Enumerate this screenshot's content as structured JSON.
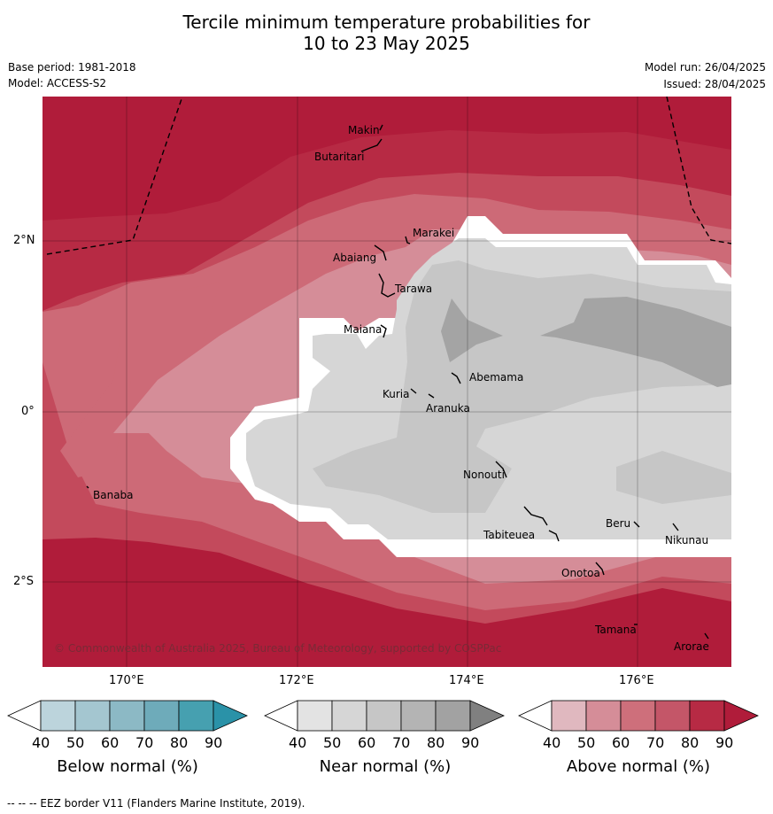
{
  "header": {
    "title_line1": "Tercile minimum temperature probabilities for",
    "title_line2": "10 to 23 May 2025",
    "base_period": "Base period: 1981-2018",
    "model": "Model: ACCESS-S2",
    "model_run": "Model run: 26/04/2025",
    "issued": "Issued: 28/04/2025"
  },
  "map": {
    "lon_range": [
      169,
      177.1
    ],
    "lat_range": [
      -2.9,
      3.8
    ],
    "lon_ticks": [
      "170°E",
      "172°E",
      "174°E",
      "176°E"
    ],
    "lat_ticks": [
      "2°N",
      "0°",
      "2°S"
    ],
    "copyright": "© Commonwealth of Australia 2025, Bureau of Meteorology, supported by COSPPac",
    "places": [
      {
        "name": "Makin"
      },
      {
        "name": "Butaritari"
      },
      {
        "name": "Marakei"
      },
      {
        "name": "Abaiang"
      },
      {
        "name": "Tarawa"
      },
      {
        "name": "Maiana"
      },
      {
        "name": "Abemama"
      },
      {
        "name": "Kuria"
      },
      {
        "name": "Aranuka"
      },
      {
        "name": "Banaba"
      },
      {
        "name": "Nonouti"
      },
      {
        "name": "Tabiteuea"
      },
      {
        "name": "Beru"
      },
      {
        "name": "Nikunau"
      },
      {
        "name": "Onotoa"
      },
      {
        "name": "Tamana"
      },
      {
        "name": "Arorae"
      }
    ]
  },
  "colorbars": [
    {
      "title": "Below normal (%)",
      "ticks": [
        "40",
        "50",
        "60",
        "70",
        "80",
        "90"
      ],
      "colors": [
        "#ffffff",
        "#bcd4dc",
        "#a4c6d0",
        "#8cb9c5",
        "#6eabba",
        "#46a0b0",
        "#2a92a8"
      ]
    },
    {
      "title": "Near normal (%)",
      "ticks": [
        "40",
        "50",
        "60",
        "70",
        "80",
        "90"
      ],
      "colors": [
        "#ffffff",
        "#e3e3e3",
        "#d6d6d6",
        "#c6c6c6",
        "#b4b4b4",
        "#a2a2a2",
        "#808080"
      ]
    },
    {
      "title": "Above normal (%)",
      "ticks": [
        "40",
        "50",
        "60",
        "70",
        "80",
        "90"
      ],
      "colors": [
        "#ffffff",
        "#e0b8bf",
        "#d58d98",
        "#ce6f7b",
        "#c45668",
        "#b72a44",
        "#b01c3a"
      ]
    }
  ],
  "footnote": "--  --  -- EEZ border V11 (Flanders Marine Institute, 2019)."
}
